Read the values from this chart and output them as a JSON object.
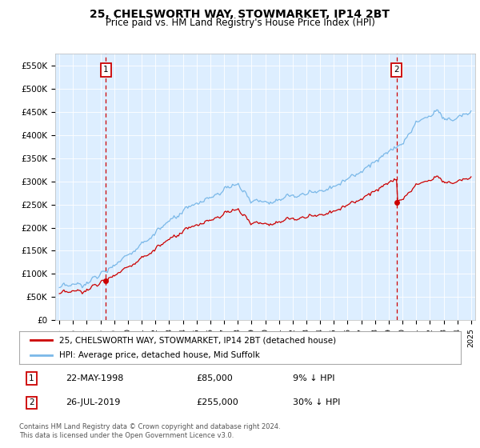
{
  "title": "25, CHELSWORTH WAY, STOWMARKET, IP14 2BT",
  "subtitle": "Price paid vs. HM Land Registry's House Price Index (HPI)",
  "ylim": [
    0,
    575000
  ],
  "yticks": [
    0,
    50000,
    100000,
    150000,
    200000,
    250000,
    300000,
    350000,
    400000,
    450000,
    500000,
    550000
  ],
  "ytick_labels": [
    "£0",
    "£50K",
    "£100K",
    "£150K",
    "£200K",
    "£250K",
    "£300K",
    "£350K",
    "£400K",
    "£450K",
    "£500K",
    "£550K"
  ],
  "background_color": "#ddeeff",
  "hpi_color": "#7ab8e8",
  "price_color": "#cc0000",
  "sale1_year": 1998.39,
  "sale1_price": 85000,
  "sale2_year": 2019.57,
  "sale2_price": 255000,
  "legend_label1": "25, CHELSWORTH WAY, STOWMARKET, IP14 2BT (detached house)",
  "legend_label2": "HPI: Average price, detached house, Mid Suffolk",
  "annotation1_label": "1",
  "annotation1_date": "22-MAY-1998",
  "annotation1_price": "£85,000",
  "annotation1_hpi": "9% ↓ HPI",
  "annotation2_label": "2",
  "annotation2_date": "26-JUL-2019",
  "annotation2_price": "£255,000",
  "annotation2_hpi": "30% ↓ HPI",
  "footer": "Contains HM Land Registry data © Crown copyright and database right 2024.\nThis data is licensed under the Open Government Licence v3.0."
}
